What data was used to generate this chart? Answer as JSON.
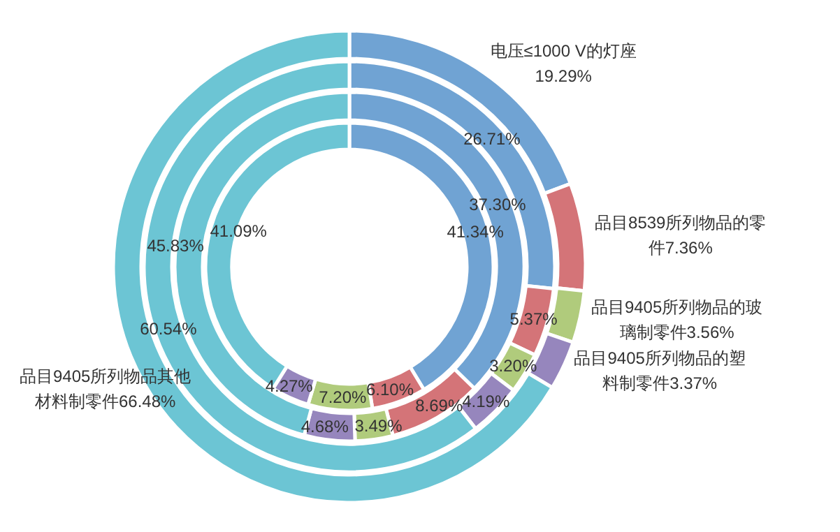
{
  "chart_data": {
    "type": "donut",
    "categories": [
      "电压≤1000 V的灯座",
      "品目8539所列物品的零件",
      "品目9405所列物品的玻璃制零件",
      "品目9405所列物品的塑料制零件",
      "品目9405所列物品其他材料制零件"
    ],
    "colors": [
      "#70a3d3",
      "#d47478",
      "#b0cb7c",
      "#9686bd",
      "#6cc5d4"
    ],
    "series": [
      {
        "values": [
          19.29,
          7.36,
          3.56,
          3.37,
          66.48
        ],
        "value_labels": [
          "19.29%",
          "7.36%",
          "3.56%",
          "3.37%",
          "66.48%"
        ]
      },
      {
        "values": [
          26.71,
          5.37,
          3.2,
          4.19,
          60.54
        ],
        "value_labels": [
          "26.71%",
          "5.37%",
          "3.20%",
          "4.19%",
          "60.54%"
        ]
      },
      {
        "values": [
          37.3,
          8.69,
          3.49,
          4.68,
          45.83
        ],
        "value_labels": [
          "37.30%",
          "8.69%",
          "3.49%",
          "4.68%",
          "45.83%"
        ]
      },
      {
        "values": [
          41.34,
          6.1,
          7.2,
          4.27,
          41.09
        ],
        "value_labels": [
          "41.34%",
          "6.10%",
          "7.20%",
          "4.27%",
          "41.09%"
        ]
      }
    ]
  }
}
